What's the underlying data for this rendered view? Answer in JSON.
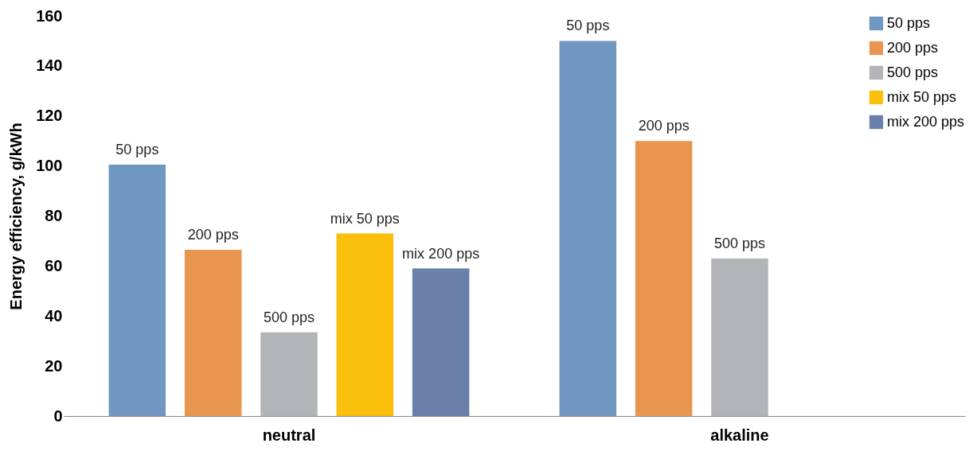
{
  "chart_data": {
    "type": "bar",
    "ylabel": "Energy efficiency, g/kWh",
    "categories": [
      "neutral",
      "alkaline"
    ],
    "ylim": [
      0,
      160
    ],
    "yticks": [
      0,
      20,
      40,
      60,
      80,
      100,
      120,
      140,
      160
    ],
    "grid": false,
    "legend": "top right",
    "series": [
      {
        "name": "50 pps",
        "color": "#6f97c0",
        "values": [
          100.5,
          150
        ]
      },
      {
        "name": "200 pps",
        "color": "#e8964f",
        "values": [
          66.5,
          110
        ]
      },
      {
        "name": "500 pps",
        "color": "#b3b4b8",
        "values": [
          33.5,
          63
        ]
      },
      {
        "name": "mix 50 pps",
        "color": "#fbc00c",
        "values": [
          73,
          null
        ]
      },
      {
        "name": "mix 200 pps",
        "color": "#6a7fa9",
        "values": [
          59,
          null
        ]
      }
    ]
  }
}
